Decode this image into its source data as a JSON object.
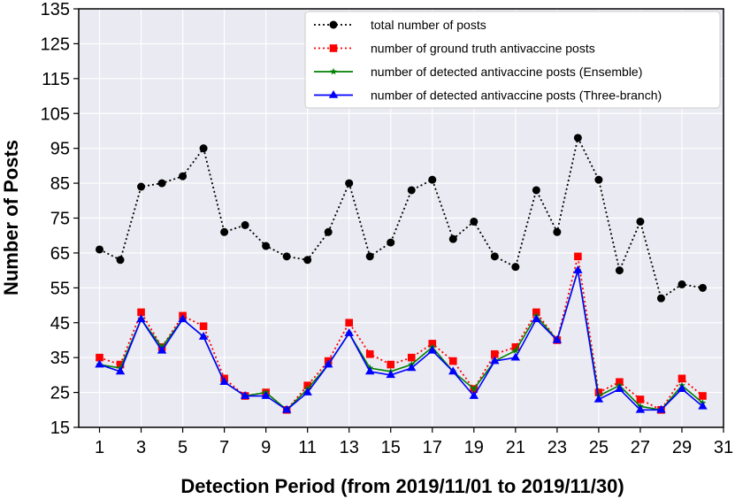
{
  "chart_data": {
    "type": "line",
    "title": "",
    "xlabel": "Detection Period (from 2019/11/01 to 2019/11/30)",
    "ylabel": "Number of Posts",
    "x": [
      1,
      2,
      3,
      4,
      5,
      6,
      7,
      8,
      9,
      10,
      11,
      12,
      13,
      14,
      15,
      16,
      17,
      18,
      19,
      20,
      21,
      22,
      23,
      24,
      25,
      26,
      27,
      28,
      29,
      30
    ],
    "xlim": [
      0,
      31
    ],
    "ylim": [
      15,
      135
    ],
    "xticks": [
      "1",
      "3",
      "5",
      "7",
      "9",
      "11",
      "13",
      "15",
      "17",
      "19",
      "21",
      "23",
      "25",
      "27",
      "29",
      "31"
    ],
    "yticks": [
      "15",
      "25",
      "35",
      "45",
      "55",
      "65",
      "75",
      "85",
      "95",
      "105",
      "115",
      "125",
      "135"
    ],
    "grid": true,
    "legend_position": "top-right",
    "background": "#eaeaf2",
    "series": [
      {
        "name": "total number of posts",
        "color": "#000000",
        "line_style": "dotted",
        "marker": "circle",
        "values": [
          66,
          63,
          84,
          85,
          87,
          95,
          71,
          73,
          67,
          64,
          63,
          71,
          85,
          64,
          68,
          83,
          86,
          69,
          74,
          64,
          61,
          83,
          71,
          98,
          86,
          60,
          74,
          52,
          56,
          55
        ]
      },
      {
        "name": "number of ground truth antivaccine posts",
        "color": "#ff0000",
        "line_style": "dotted",
        "marker": "square",
        "values": [
          35,
          33,
          48,
          38,
          47,
          44,
          29,
          24,
          25,
          20,
          27,
          34,
          45,
          36,
          33,
          35,
          39,
          34,
          26,
          36,
          38,
          48,
          40,
          64,
          25,
          28,
          23,
          20,
          29,
          24
        ]
      },
      {
        "name": "number of detected antivaccine posts (Ensemble)",
        "color": "#008000",
        "line_style": "solid",
        "marker": "star",
        "values": [
          33,
          32,
          46,
          38,
          46,
          41,
          28,
          24,
          25,
          20,
          26,
          33,
          42,
          32,
          31,
          33,
          38,
          31,
          26,
          34,
          37,
          47,
          40,
          60,
          24,
          27,
          21,
          20,
          27,
          22
        ]
      },
      {
        "name": "number of detected antivaccine posts (Three-branch)",
        "color": "#0000ff",
        "line_style": "solid",
        "marker": "triangle",
        "values": [
          33,
          31,
          46,
          37,
          46,
          41,
          28,
          24,
          24,
          20,
          25,
          33,
          42,
          31,
          30,
          32,
          37,
          31,
          24,
          34,
          35,
          46,
          40,
          60,
          23,
          26,
          20,
          20,
          26,
          21
        ]
      }
    ]
  }
}
